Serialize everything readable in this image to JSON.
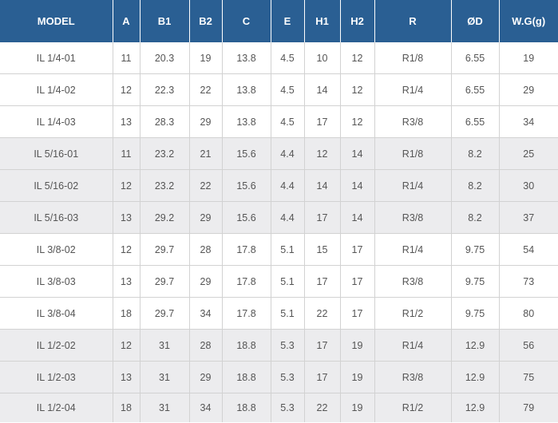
{
  "table": {
    "headers": [
      "MODEL",
      "A",
      "B1",
      "B2",
      "C",
      "E",
      "H1",
      "H2",
      "R",
      "ØD",
      "W.G(g)"
    ],
    "rows": [
      [
        "IL 1/4-01",
        "11",
        "20.3",
        "19",
        "13.8",
        "4.5",
        "10",
        "12",
        "R1/8",
        "6.55",
        "19"
      ],
      [
        "IL 1/4-02",
        "12",
        "22.3",
        "22",
        "13.8",
        "4.5",
        "14",
        "12",
        "R1/4",
        "6.55",
        "29"
      ],
      [
        "IL 1/4-03",
        "13",
        "28.3",
        "29",
        "13.8",
        "4.5",
        "17",
        "12",
        "R3/8",
        "6.55",
        "34"
      ],
      [
        "IL 5/16-01",
        "11",
        "23.2",
        "21",
        "15.6",
        "4.4",
        "12",
        "14",
        "R1/8",
        "8.2",
        "25"
      ],
      [
        "IL 5/16-02",
        "12",
        "23.2",
        "22",
        "15.6",
        "4.4",
        "14",
        "14",
        "R1/4",
        "8.2",
        "30"
      ],
      [
        "IL 5/16-03",
        "13",
        "29.2",
        "29",
        "15.6",
        "4.4",
        "17",
        "14",
        "R3/8",
        "8.2",
        "37"
      ],
      [
        "IL 3/8-02",
        "12",
        "29.7",
        "28",
        "17.8",
        "5.1",
        "15",
        "17",
        "R1/4",
        "9.75",
        "54"
      ],
      [
        "IL 3/8-03",
        "13",
        "29.7",
        "29",
        "17.8",
        "5.1",
        "17",
        "17",
        "R3/8",
        "9.75",
        "73"
      ],
      [
        "IL 3/8-04",
        "18",
        "29.7",
        "34",
        "17.8",
        "5.1",
        "22",
        "17",
        "R1/2",
        "9.75",
        "80"
      ],
      [
        "IL 1/2-02",
        "12",
        "31",
        "28",
        "18.8",
        "5.3",
        "17",
        "19",
        "R1/4",
        "12.9",
        "56"
      ],
      [
        "IL 1/2-03",
        "13",
        "31",
        "29",
        "18.8",
        "5.3",
        "17",
        "19",
        "R3/8",
        "12.9",
        "75"
      ],
      [
        "IL 1/2-04",
        "18",
        "31",
        "34",
        "18.8",
        "5.3",
        "22",
        "19",
        "R1/2",
        "12.9",
        "79"
      ]
    ]
  }
}
